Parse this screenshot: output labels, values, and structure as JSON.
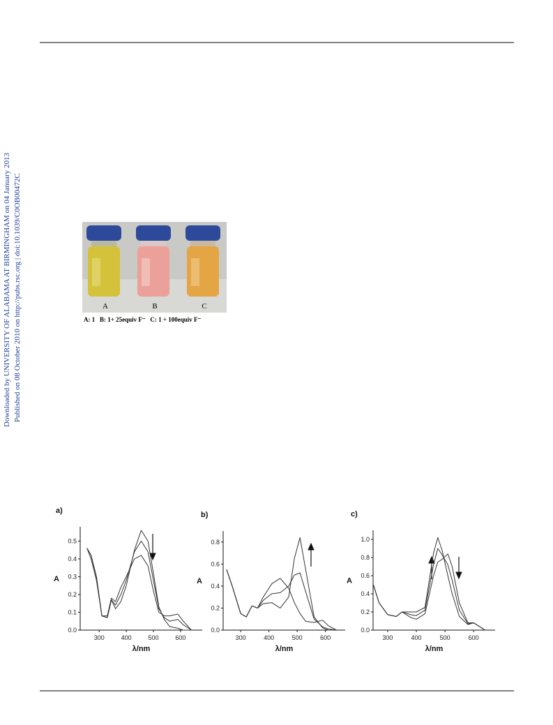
{
  "sidebar": {
    "line1": "Downloaded by UNIVERSITY OF ALABAMA AT BIRMINGHAM on 04 January 2013",
    "line2": "Published on 08 October 2010 on http://pubs.rsc.org | doi:10.1039/C0OB00472C"
  },
  "photo": {
    "labels": [
      "A",
      "B",
      "C"
    ],
    "caption": "A: 1   B: 1+ 25equiv F⁻   C: 1 + 100equiv F⁻"
  },
  "chart_data": [
    {
      "type": "line",
      "title": "a)",
      "x_label": "λ/nm",
      "y_label": "A",
      "x": [
        255,
        270,
        290,
        310,
        330,
        345,
        360,
        380,
        400,
        430,
        455,
        480,
        500,
        520,
        540,
        560,
        590,
        610,
        640
      ],
      "series": [
        {
          "color": "#333333",
          "values": [
            0.46,
            0.42,
            0.3,
            0.08,
            0.07,
            0.17,
            0.12,
            0.16,
            0.25,
            0.45,
            0.56,
            0.5,
            0.32,
            0.13,
            0.06,
            0.02,
            0.01,
            0.0,
            0.0
          ]
        },
        {
          "color": "#333333",
          "values": [
            0.46,
            0.42,
            0.3,
            0.08,
            0.07,
            0.17,
            0.14,
            0.2,
            0.28,
            0.44,
            0.5,
            0.44,
            0.28,
            0.12,
            0.07,
            0.05,
            0.06,
            0.03,
            0.0
          ]
        },
        {
          "color": "#333333",
          "values": [
            0.46,
            0.4,
            0.28,
            0.08,
            0.08,
            0.18,
            0.16,
            0.24,
            0.3,
            0.4,
            0.42,
            0.36,
            0.22,
            0.1,
            0.08,
            0.08,
            0.09,
            0.05,
            0.0
          ]
        }
      ],
      "xlim": [
        230,
        680
      ],
      "ylim": [
        0,
        0.58
      ],
      "xticks": [
        300,
        400,
        500,
        600
      ],
      "yticks": [
        {
          "value": 0,
          "label": "0.0"
        },
        {
          "value": 0.1,
          "label": "0.1"
        },
        {
          "value": 0.2,
          "label": "0.2"
        },
        {
          "value": 0.3,
          "label": "0.3"
        },
        {
          "value": 0.4,
          "label": "0.4"
        },
        {
          "value": 0.5,
          "label": "0.5"
        }
      ]
    },
    {
      "type": "line",
      "title": "b)",
      "x_label": "λ/nm",
      "y_label": "A",
      "x": [
        250,
        270,
        300,
        320,
        340,
        360,
        380,
        410,
        440,
        470,
        490,
        510,
        530,
        560,
        590,
        610,
        640
      ],
      "series": [
        {
          "color": "#333333",
          "values": [
            0.55,
            0.4,
            0.15,
            0.12,
            0.22,
            0.2,
            0.3,
            0.42,
            0.47,
            0.38,
            0.25,
            0.15,
            0.08,
            0.07,
            0.09,
            0.04,
            0.0
          ]
        },
        {
          "color": "#333333",
          "values": [
            0.55,
            0.4,
            0.15,
            0.12,
            0.22,
            0.2,
            0.27,
            0.33,
            0.34,
            0.4,
            0.5,
            0.52,
            0.35,
            0.1,
            0.03,
            0.01,
            0.0
          ]
        },
        {
          "color": "#333333",
          "values": [
            0.55,
            0.4,
            0.15,
            0.12,
            0.22,
            0.2,
            0.24,
            0.25,
            0.2,
            0.3,
            0.65,
            0.84,
            0.55,
            0.12,
            0.02,
            0.0,
            0.0
          ]
        }
      ],
      "xlim": [
        238,
        670
      ],
      "ylim": [
        0,
        0.9
      ],
      "xticks": [
        300,
        400,
        500,
        600
      ],
      "yticks": [
        {
          "value": 0,
          "label": "0.0"
        },
        {
          "value": 0.2,
          "label": "0.2"
        },
        {
          "value": 0.4,
          "label": "0.4"
        },
        {
          "value": 0.6,
          "label": "0.6"
        },
        {
          "value": 0.8,
          "label": "0.8"
        }
      ]
    },
    {
      "type": "line",
      "title": "c)",
      "x_label": "λ/nm",
      "y_label": "A",
      "x": [
        250,
        270,
        300,
        330,
        350,
        380,
        400,
        430,
        460,
        475,
        490,
        510,
        525,
        550,
        580,
        600,
        640
      ],
      "series": [
        {
          "color": "#333333",
          "values": [
            0.5,
            0.3,
            0.17,
            0.15,
            0.2,
            0.14,
            0.12,
            0.18,
            0.6,
            0.75,
            0.78,
            0.84,
            0.7,
            0.3,
            0.08,
            0.08,
            0.0
          ]
        },
        {
          "color": "#333333",
          "values": [
            0.5,
            0.3,
            0.17,
            0.15,
            0.2,
            0.17,
            0.16,
            0.22,
            0.72,
            0.9,
            0.83,
            0.72,
            0.55,
            0.22,
            0.07,
            0.08,
            0.0
          ]
        },
        {
          "color": "#333333",
          "values": [
            0.5,
            0.3,
            0.17,
            0.15,
            0.2,
            0.2,
            0.2,
            0.25,
            0.85,
            1.02,
            0.88,
            0.6,
            0.4,
            0.15,
            0.06,
            0.08,
            0.0
          ]
        }
      ],
      "xlim": [
        249,
        675
      ],
      "ylim": [
        0,
        1.1
      ],
      "xticks": [
        300,
        400,
        500,
        600
      ],
      "yticks": [
        {
          "value": 0,
          "label": "0.0"
        },
        {
          "value": 0.2,
          "label": "0.2"
        },
        {
          "value": 0.4,
          "label": "0.4"
        },
        {
          "value": 0.6,
          "label": "0.6"
        },
        {
          "value": 0.8,
          "label": "0.8"
        },
        {
          "value": 1.0,
          "label": "1.0"
        }
      ]
    }
  ]
}
